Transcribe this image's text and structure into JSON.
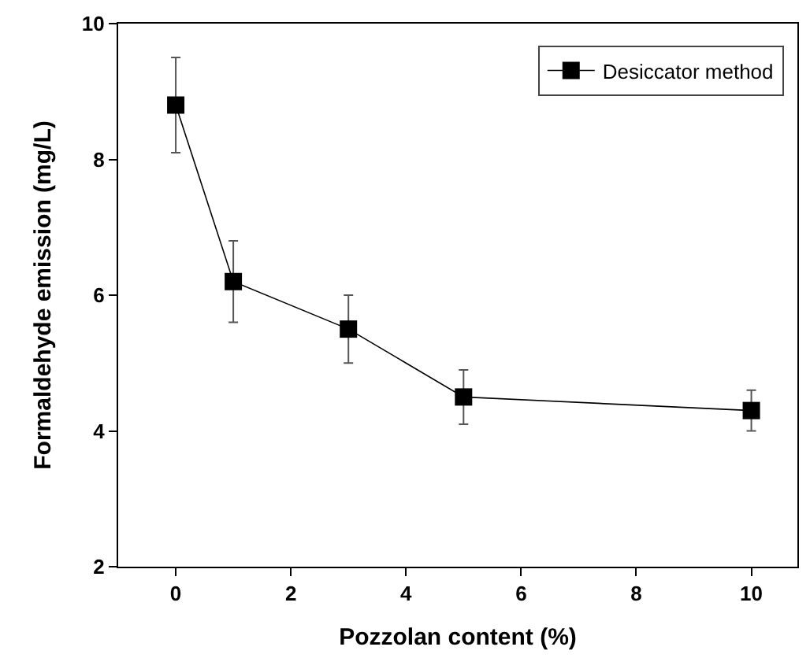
{
  "chart_data": {
    "type": "line",
    "xlabel": "Pozzolan content (%)",
    "ylabel": "Formaldehyde emission (mg/L)",
    "x": [
      0,
      1,
      3,
      5,
      10
    ],
    "series": [
      {
        "name": "Desiccator method",
        "color": "#000000",
        "values": [
          8.8,
          6.2,
          5.5,
          4.5,
          4.3
        ],
        "errors": [
          0.7,
          0.6,
          0.5,
          0.4,
          0.3
        ]
      }
    ],
    "xlim": [
      -1,
      10.8
    ],
    "xticks": [
      0,
      2,
      4,
      6,
      8,
      10
    ],
    "ylim": [
      2,
      10
    ],
    "yticks": [
      2,
      4,
      6,
      8,
      10
    ],
    "marker": "square",
    "line_style": "solid",
    "legend": "top right"
  }
}
